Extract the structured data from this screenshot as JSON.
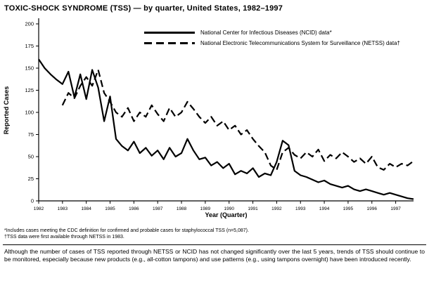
{
  "title": "TOXIC-SHOCK SYNDROME (TSS) — by quarter, United States, 1982–1997",
  "footnotes": [
    "*Includes cases meeting the CDC definition for confirmed and probable cases for staphylococcal TSS (n=5,087).",
    "†TSS data were first available through NETSS in 1983."
  ],
  "note": "Although the number of cases of TSS reported through NETSS or NCID has not changed significantly over the last 5 years, trends of TSS should continue to be monitored, especially because new products (e.g., all-cotton tampons) and use patterns (e.g., using tampons overnight) have been introduced recently.",
  "chart_data": {
    "type": "line",
    "title": "TOXIC-SHOCK SYNDROME (TSS) — by quarter, United States, 1982–1997",
    "xlabel": "Year (Quarter)",
    "ylabel": "Reported Cases",
    "ylim": [
      0,
      200
    ],
    "ytick": 25,
    "grid": false,
    "legend_position": "top-inside",
    "x_unit": "quarter",
    "years": [
      "1982",
      "1983",
      "1984",
      "1985",
      "1986",
      "1987",
      "1988",
      "1989",
      "1990",
      "1991",
      "1992",
      "1993",
      "1994",
      "1995",
      "1996",
      "1997"
    ],
    "series": [
      {
        "id": "ncid",
        "name": "National Center for Infectious Diseases (NCID) data*",
        "style": "solid",
        "start_quarter": 0,
        "values": [
          160,
          150,
          143,
          137,
          132,
          146,
          117,
          143,
          115,
          148,
          128,
          90,
          118,
          70,
          62,
          57,
          67,
          54,
          60,
          51,
          57,
          47,
          60,
          50,
          54,
          70,
          57,
          47,
          49,
          40,
          44,
          37,
          42,
          30,
          34,
          31,
          37,
          27,
          31,
          29,
          44,
          68,
          63,
          34,
          29,
          27,
          24,
          21,
          23,
          19,
          17,
          15,
          17,
          13,
          11,
          13,
          11,
          9,
          7,
          9,
          7,
          5,
          3,
          2
        ]
      },
      {
        "id": "netss",
        "name": "National Electronic Telecommunications System for Surveillance (NETSS) data†",
        "style": "dashed",
        "start_quarter": 4,
        "values": [
          108,
          122,
          116,
          130,
          140,
          130,
          148,
          122,
          112,
          100,
          95,
          105,
          90,
          100,
          95,
          108,
          98,
          90,
          105,
          95,
          100,
          112,
          104,
          95,
          88,
          95,
          85,
          90,
          80,
          85,
          75,
          80,
          70,
          62,
          55,
          40,
          35,
          55,
          60,
          52,
          48,
          55,
          50,
          58,
          45,
          52,
          48,
          55,
          50,
          44,
          48,
          42,
          50,
          38,
          35,
          42,
          38,
          42,
          40,
          45
        ]
      }
    ]
  }
}
